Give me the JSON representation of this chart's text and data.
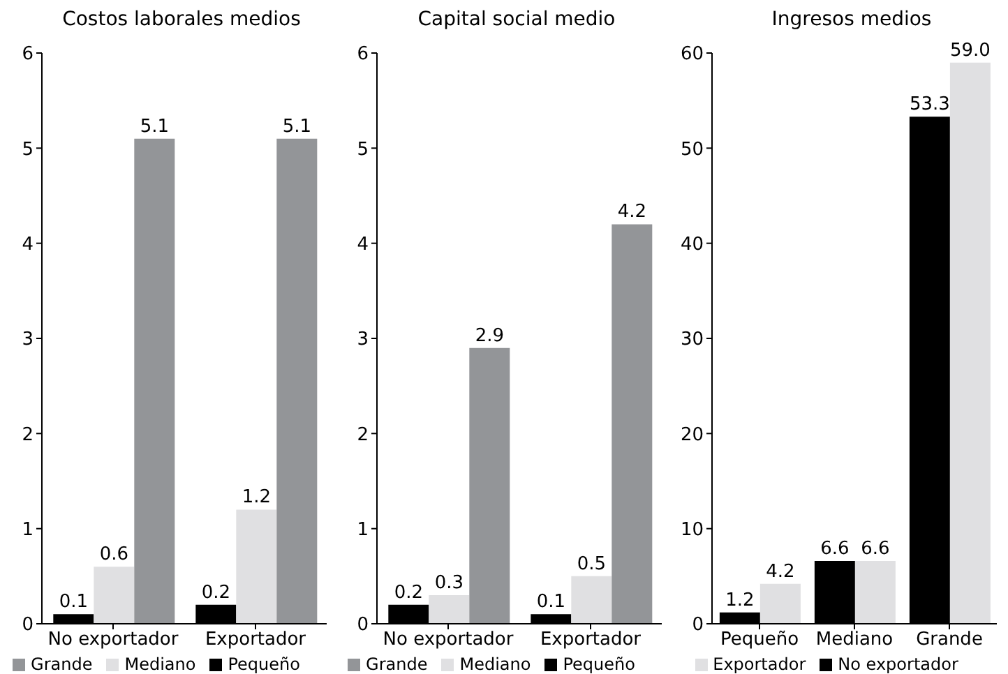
{
  "chart_data": [
    {
      "type": "bar",
      "title": "Costos laborales medios",
      "categories": [
        "No exportador",
        "Exportador"
      ],
      "series": [
        {
          "name": "Pequeño",
          "color": "#000000",
          "values": [
            0.1,
            0.2
          ],
          "value_labels": [
            "0.1",
            "0.2"
          ]
        },
        {
          "name": "Mediano",
          "color": "#e0e0e2",
          "values": [
            0.6,
            1.2
          ],
          "value_labels": [
            "0.6",
            "1.2"
          ]
        },
        {
          "name": "Grande",
          "color": "#939598",
          "values": [
            5.1,
            5.1
          ],
          "value_labels": [
            "5.1",
            "5.1"
          ]
        }
      ],
      "ylim": [
        0,
        6
      ],
      "yticks": [
        0,
        1,
        2,
        3,
        4,
        5,
        6
      ],
      "grid": false,
      "legend": "bottom"
    },
    {
      "type": "bar",
      "title": "Capital social medio",
      "categories": [
        "No exportador",
        "Exportador"
      ],
      "series": [
        {
          "name": "Pequeño",
          "color": "#000000",
          "values": [
            0.2,
            0.1
          ],
          "value_labels": [
            "0.2",
            "0.1"
          ]
        },
        {
          "name": "Mediano",
          "color": "#e0e0e2",
          "values": [
            0.3,
            0.5
          ],
          "value_labels": [
            "0.3",
            "0.5"
          ]
        },
        {
          "name": "Grande",
          "color": "#939598",
          "values": [
            2.9,
            4.2
          ],
          "value_labels": [
            "2.9",
            "4.2"
          ]
        }
      ],
      "ylim": [
        0,
        6
      ],
      "yticks": [
        0,
        1,
        2,
        3,
        4,
        5,
        6
      ],
      "grid": false,
      "legend": "bottom"
    },
    {
      "type": "bar",
      "title": "Ingresos medios",
      "categories": [
        "Pequeño",
        "Mediano",
        "Grande"
      ],
      "series": [
        {
          "name": "No exportador",
          "color": "#000000",
          "values": [
            1.2,
            6.6,
            53.3
          ],
          "value_labels": [
            "1.2",
            "6.6",
            "53.3"
          ]
        },
        {
          "name": "Exportador",
          "color": "#e0e0e2",
          "values": [
            4.2,
            6.6,
            59.0
          ],
          "value_labels": [
            "4.2",
            "6.6",
            "59.0"
          ]
        }
      ],
      "ylim": [
        0,
        60
      ],
      "yticks": [
        0,
        10,
        20,
        30,
        40,
        50,
        60
      ],
      "grid": false,
      "legend": "bottom"
    }
  ]
}
